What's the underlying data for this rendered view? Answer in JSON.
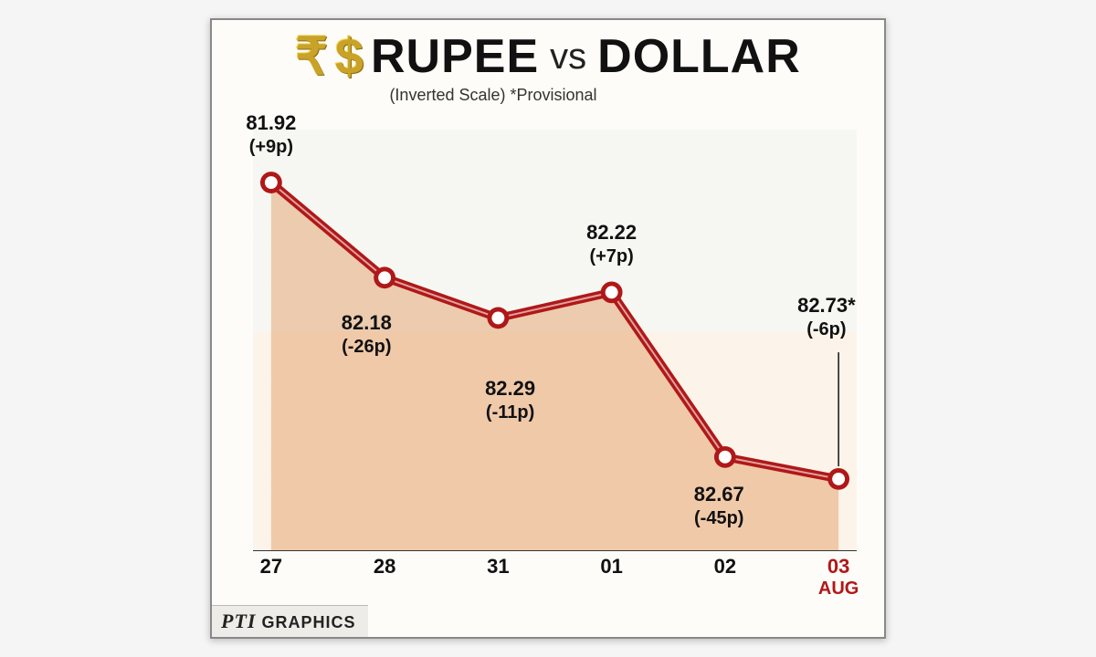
{
  "header": {
    "rupee_symbol": "₹",
    "dollar_symbol": "$",
    "title_left": "RUPEE",
    "title_mid": "vs",
    "title_right": "DOLLAR",
    "subtitle": "(Inverted Scale)  *Provisional"
  },
  "chart": {
    "type": "line-area",
    "y_inverted": true,
    "y_min": 81.8,
    "y_max": 82.9,
    "line_color": "#b01818",
    "line_inner_color": "#ffffff",
    "line_width_outer": 9,
    "line_width_inner": 2,
    "marker_radius_outer": 12,
    "marker_radius_inner": 7,
    "marker_fill": "#ffffff",
    "area_fill_color": "#e2945a",
    "background_color": "#fdfcf8",
    "points": [
      {
        "x_label": "27",
        "value": 81.92,
        "value_label": "81.92",
        "delta_label": "(+9p)",
        "label_pos": "above"
      },
      {
        "x_label": "28",
        "value": 82.18,
        "value_label": "82.18",
        "delta_label": "(-26p)",
        "label_pos": "below"
      },
      {
        "x_label": "31",
        "value": 82.29,
        "value_label": "82.29",
        "delta_label": "(-11p)",
        "label_pos": "below"
      },
      {
        "x_label": "01",
        "value": 82.22,
        "value_label": "82.22",
        "delta_label": "(+7p)",
        "label_pos": "above"
      },
      {
        "x_label": "02",
        "value": 82.67,
        "value_label": "82.67",
        "delta_label": "(-45p)",
        "label_pos": "below"
      },
      {
        "x_label": "03",
        "value": 82.73,
        "value_label": "82.73*",
        "delta_label": "(-6p)",
        "label_pos": "above-callout",
        "highlight": true
      }
    ],
    "x_month_label": "AUG",
    "label_fontsize": 22,
    "delta_fontsize": 20
  },
  "footer": {
    "source_prefix": "PTI",
    "source_text": "GRAPHICS"
  },
  "colors": {
    "text": "#111111",
    "highlight": "#b01818",
    "gold": "#c9a227"
  }
}
